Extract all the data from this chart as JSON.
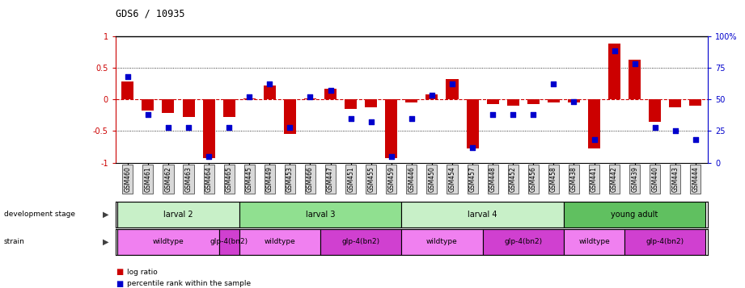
{
  "title": "GDS6 / 10935",
  "samples": [
    "GSM460",
    "GSM461",
    "GSM462",
    "GSM463",
    "GSM464",
    "GSM465",
    "GSM445",
    "GSM449",
    "GSM453",
    "GSM466",
    "GSM447",
    "GSM451",
    "GSM455",
    "GSM459",
    "GSM446",
    "GSM450",
    "GSM454",
    "GSM457",
    "GSM448",
    "GSM452",
    "GSM456",
    "GSM458",
    "GSM438",
    "GSM441",
    "GSM442",
    "GSM439",
    "GSM440",
    "GSM443",
    "GSM444"
  ],
  "log_ratio": [
    0.28,
    -0.18,
    -0.22,
    -0.28,
    -0.93,
    -0.28,
    0.02,
    0.22,
    -0.55,
    0.02,
    0.17,
    -0.15,
    -0.12,
    -0.93,
    -0.05,
    0.08,
    0.32,
    -0.78,
    -0.08,
    -0.1,
    -0.08,
    -0.05,
    -0.05,
    -0.78,
    0.88,
    0.62,
    -0.35,
    -0.12,
    -0.1
  ],
  "percentile": [
    68,
    38,
    28,
    28,
    5,
    28,
    52,
    62,
    28,
    52,
    57,
    35,
    32,
    5,
    35,
    53,
    62,
    12,
    38,
    38,
    38,
    62,
    48,
    18,
    88,
    78,
    28,
    25,
    18
  ],
  "dev_stages": [
    {
      "label": "larval 2",
      "start": 0,
      "end": 6,
      "color": "#c8f0c8"
    },
    {
      "label": "larval 3",
      "start": 6,
      "end": 14,
      "color": "#90e090"
    },
    {
      "label": "larval 4",
      "start": 14,
      "end": 22,
      "color": "#c8f0c8"
    },
    {
      "label": "young adult",
      "start": 22,
      "end": 29,
      "color": "#60c060"
    }
  ],
  "strains": [
    {
      "label": "wildtype",
      "start": 0,
      "end": 5,
      "color": "#f080f0"
    },
    {
      "label": "glp-4(bn2)",
      "start": 5,
      "end": 6,
      "color": "#d040d0"
    },
    {
      "label": "wildtype",
      "start": 6,
      "end": 10,
      "color": "#f080f0"
    },
    {
      "label": "glp-4(bn2)",
      "start": 10,
      "end": 14,
      "color": "#d040d0"
    },
    {
      "label": "wildtype",
      "start": 14,
      "end": 18,
      "color": "#f080f0"
    },
    {
      "label": "glp-4(bn2)",
      "start": 18,
      "end": 22,
      "color": "#d040d0"
    },
    {
      "label": "wildtype",
      "start": 22,
      "end": 25,
      "color": "#f080f0"
    },
    {
      "label": "glp-4(bn2)",
      "start": 25,
      "end": 29,
      "color": "#d040d0"
    }
  ],
  "ylim": [
    -1.0,
    1.0
  ],
  "y2lim": [
    0,
    100
  ],
  "bar_color": "#cc0000",
  "dot_color": "#0000cc",
  "zero_line_color": "#cc0000",
  "bg_color": "#ffffff",
  "tick_bg_color": "#d8d8d8"
}
